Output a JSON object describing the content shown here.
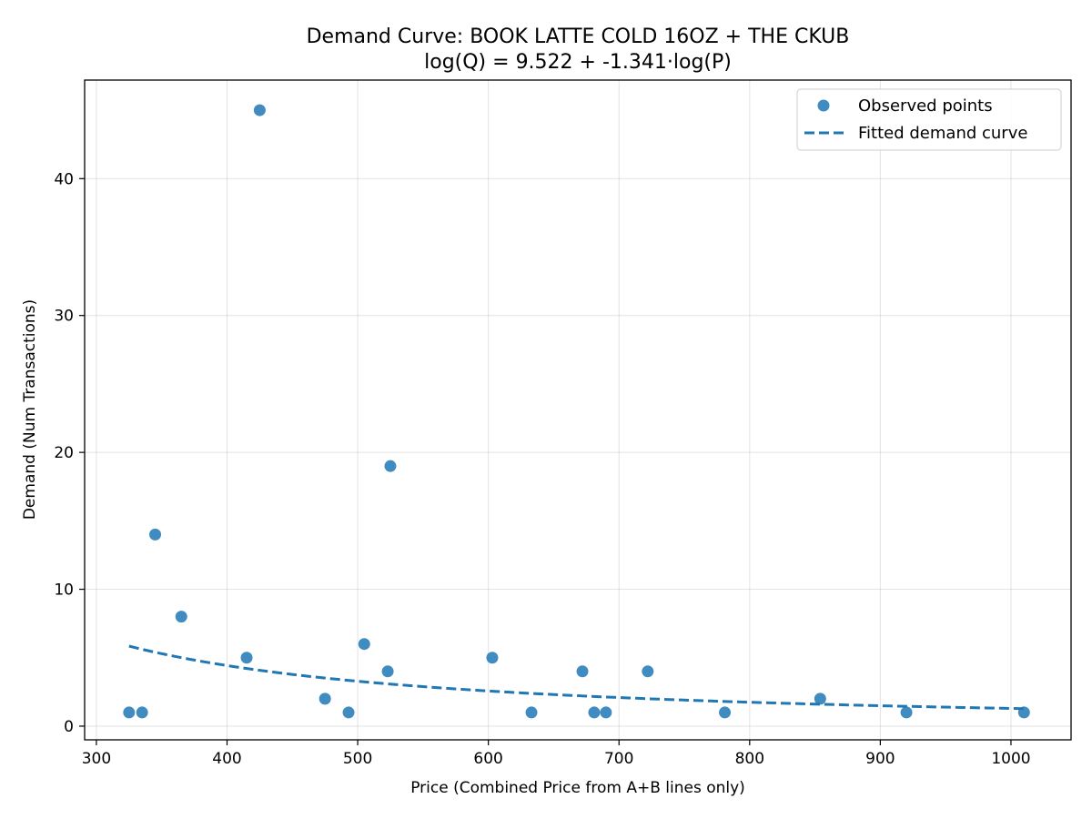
{
  "chart_data": {
    "type": "scatter",
    "title": "Demand Curve: BOOK LATTE COLD 16OZ + THE CKUB",
    "subtitle": "log(Q) = 9.522 + -1.341·log(P)",
    "xlabel": "Price (Combined Price from A+B lines only)",
    "ylabel": "Demand (Num Transactions)",
    "xlim": [
      291,
      1046
    ],
    "ylim": [
      -1.0,
      47.2
    ],
    "xticks": [
      300,
      400,
      500,
      600,
      700,
      800,
      900,
      1000
    ],
    "yticks": [
      0,
      10,
      20,
      30,
      40
    ],
    "xtick_labels": [
      "300",
      "400",
      "500",
      "600",
      "700",
      "800",
      "900",
      "1000"
    ],
    "ytick_labels": [
      "0",
      "10",
      "20",
      "30",
      "40"
    ],
    "grid": true,
    "legend_position": "top-right",
    "colors": {
      "points": "#1f77b4",
      "curve": "#1f77b4"
    },
    "series": [
      {
        "name": "Observed points",
        "kind": "scatter",
        "x": [
          325,
          335,
          345,
          365,
          415,
          425,
          475,
          493,
          505,
          523,
          525,
          603,
          633,
          672,
          681,
          690,
          722,
          781,
          854,
          920,
          1010
        ],
        "y": [
          1,
          1,
          14,
          8,
          5,
          45,
          2,
          1,
          6,
          4,
          19,
          5,
          1,
          4,
          1,
          1,
          4,
          1,
          2,
          1,
          1
        ]
      },
      {
        "name": "Fitted demand curve",
        "kind": "line",
        "style": "dashed",
        "equation": {
          "intercept": 9.522,
          "slope": -1.341
        },
        "x_range": [
          325,
          1010
        ]
      }
    ]
  }
}
